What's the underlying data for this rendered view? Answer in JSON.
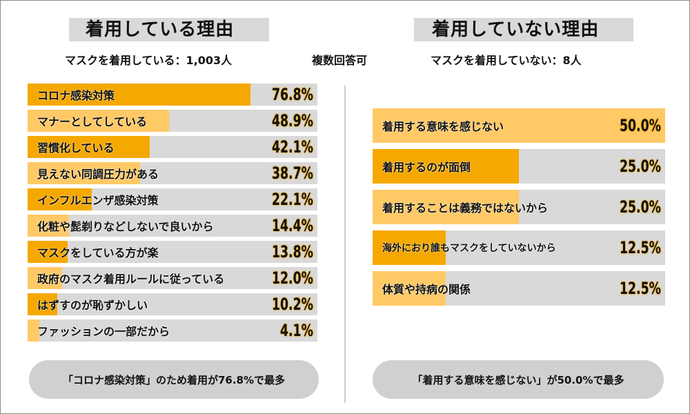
{
  "left": {
    "title": "着用している理由",
    "subtitle": "マスクを着用している：1,003人"
  },
  "center_note": "複数回答可",
  "right": {
    "title": "着用していない理由",
    "subtitle": "マスクを着用していない：8人"
  },
  "summary_left": "「コロナ感染対策」のため着用が76.8%で最多",
  "summary_right": "「着用する意味を感じない」が50.0%で最多",
  "colors": {
    "orange_dark": "#f5a800",
    "orange_light": "#ffc966",
    "track": "#d9d9d9"
  },
  "chart_data": [
    {
      "type": "bar",
      "orientation": "horizontal",
      "title": "着用している理由",
      "categories": [
        "コロナ感染対策",
        "マナーとしてしている",
        "習慣化している",
        "見えない同調圧力がある",
        "インフルエンザ感染対策",
        "化粧や髭剃りなどしないで良いから",
        "マスクをしている方が楽",
        "政府のマスク着用ルールに従っている",
        "はずすのが恥ずかしい",
        "ファッションの一部だから"
      ],
      "values": [
        76.8,
        48.9,
        42.1,
        38.7,
        22.1,
        14.4,
        13.8,
        12.0,
        10.2,
        4.1
      ],
      "value_labels": [
        "76.8%",
        "48.9%",
        "42.1%",
        "38.7%",
        "22.1%",
        "14.4%",
        "13.8%",
        "12.0%",
        "10.2%",
        "4.1%"
      ],
      "colors": [
        "#f5a800",
        "#ffc966",
        "#f5a800",
        "#ffc966",
        "#f5a800",
        "#ffc966",
        "#f5a800",
        "#ffc966",
        "#f5a800",
        "#ffc966"
      ],
      "xlim": [
        0,
        100
      ]
    },
    {
      "type": "bar",
      "orientation": "horizontal",
      "title": "着用していない理由",
      "categories": [
        "着用する意味を感じない",
        "着用するのが面倒",
        "着用することは義務ではないから",
        "海外におり誰もマスクをしていないから",
        "体質や持病の関係"
      ],
      "values": [
        50.0,
        25.0,
        25.0,
        12.5,
        12.5
      ],
      "value_labels": [
        "50.0%",
        "25.0%",
        "25.0%",
        "12.5%",
        "12.5%"
      ],
      "colors": [
        "#ffc966",
        "#f5a800",
        "#ffc966",
        "#f5a800",
        "#ffc966"
      ],
      "xlim": [
        0,
        50
      ]
    }
  ]
}
